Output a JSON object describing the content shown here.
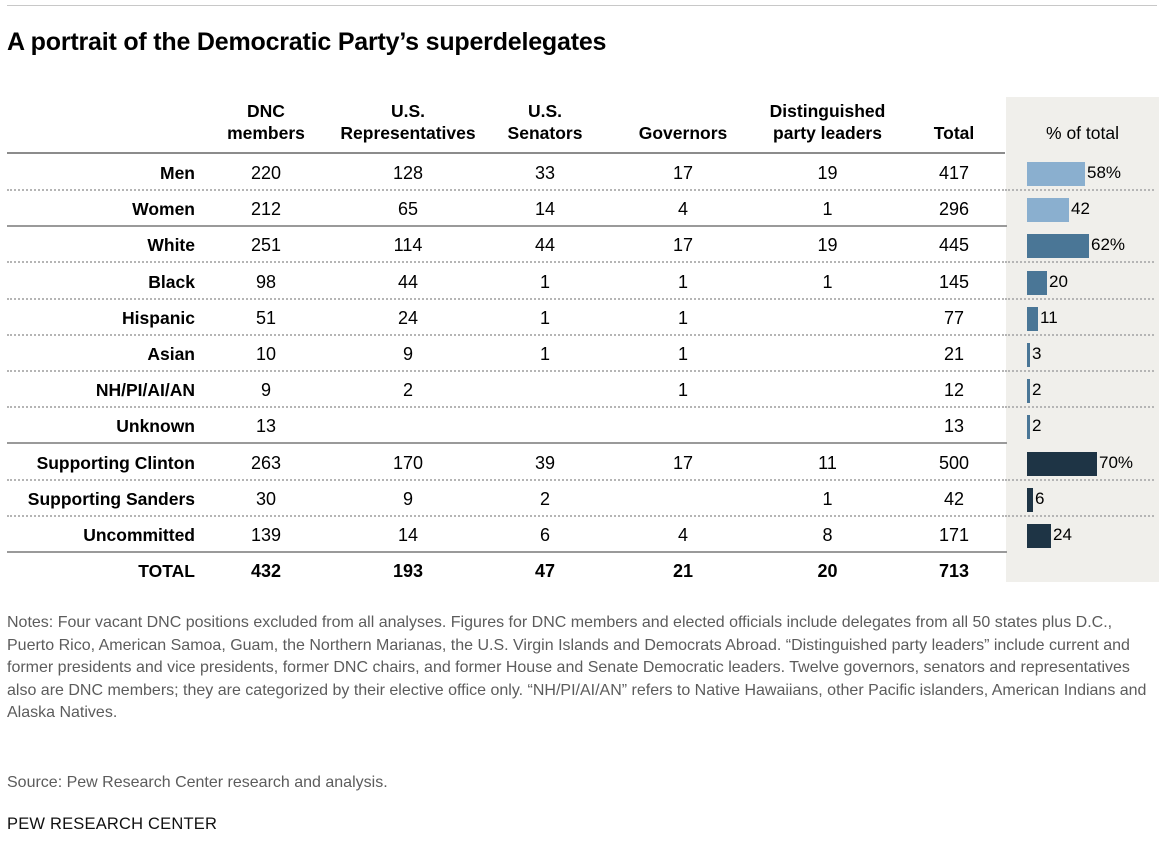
{
  "title": "A portrait of the Democratic Party’s superdelegates",
  "columns": [
    "DNC\nmembers",
    "U.S.\nRepresentatives",
    "U.S.\nSenators",
    "Governors",
    "Distinguished\nparty leaders",
    "Total",
    "% of total"
  ],
  "chart_data": {
    "type": "table",
    "title": "A portrait of the Democratic Party’s superdelegates",
    "rows": [
      {
        "label": "Men",
        "dnc": "220",
        "reps": "128",
        "senators": "33",
        "governors": "17",
        "leaders": "19",
        "total": "417",
        "pct": 58,
        "pct_label": "58%",
        "bar_color": "#8aafcf"
      },
      {
        "label": "Women",
        "dnc": "212",
        "reps": "65",
        "senators": "14",
        "governors": "4",
        "leaders": "1",
        "total": "296",
        "pct": 42,
        "pct_label": "42",
        "bar_color": "#8aafcf"
      },
      {
        "label": "White",
        "dnc": "251",
        "reps": "114",
        "senators": "44",
        "governors": "17",
        "leaders": "19",
        "total": "445",
        "pct": 62,
        "pct_label": "62%",
        "bar_color": "#4a7696"
      },
      {
        "label": "Black",
        "dnc": "98",
        "reps": "44",
        "senators": "1",
        "governors": "1",
        "leaders": "1",
        "total": "145",
        "pct": 20,
        "pct_label": "20",
        "bar_color": "#4a7696"
      },
      {
        "label": "Hispanic",
        "dnc": "51",
        "reps": "24",
        "senators": "1",
        "governors": "1",
        "leaders": "",
        "total": "77",
        "pct": 11,
        "pct_label": "11",
        "bar_color": "#4a7696"
      },
      {
        "label": "Asian",
        "dnc": "10",
        "reps": "9",
        "senators": "1",
        "governors": "1",
        "leaders": "",
        "total": "21",
        "pct": 3,
        "pct_label": "3",
        "bar_color": "#4a7696"
      },
      {
        "label": "NH/PI/AI/AN",
        "dnc": "9",
        "reps": "2",
        "senators": "",
        "governors": "1",
        "leaders": "",
        "total": "12",
        "pct": 2,
        "pct_label": "2",
        "bar_color": "#4a7696"
      },
      {
        "label": "Unknown",
        "dnc": "13",
        "reps": "",
        "senators": "",
        "governors": "",
        "leaders": "",
        "total": "13",
        "pct": 2,
        "pct_label": "2",
        "bar_color": "#4a7696"
      },
      {
        "label": "Supporting Clinton",
        "dnc": "263",
        "reps": "170",
        "senators": "39",
        "governors": "17",
        "leaders": "11",
        "total": "500",
        "pct": 70,
        "pct_label": "70%",
        "bar_color": "#1e3445"
      },
      {
        "label": "Supporting Sanders",
        "dnc": "30",
        "reps": "9",
        "senators": "2",
        "governors": "",
        "leaders": "1",
        "total": "42",
        "pct": 6,
        "pct_label": "6",
        "bar_color": "#1e3445"
      },
      {
        "label": "Uncommitted",
        "dnc": "139",
        "reps": "14",
        "senators": "6",
        "governors": "4",
        "leaders": "8",
        "total": "171",
        "pct": 24,
        "pct_label": "24",
        "bar_color": "#1e3445"
      },
      {
        "label": "TOTAL",
        "dnc": "432",
        "reps": "193",
        "senators": "47",
        "governors": "21",
        "leaders": "20",
        "total": "713",
        "pct": null,
        "pct_label": "",
        "bar_color": ""
      }
    ]
  },
  "notes": "Notes: Four vacant DNC positions excluded from all analyses. Figures for DNC members and elected officials include delegates from all 50 states plus D.C., Puerto Rico, American Samoa, Guam, the Northern Marianas, the U.S. Virgin Islands and Democrats Abroad. “Distinguished party leaders” include current and former presidents and vice presidents, former DNC chairs, and former House and Senate Democratic leaders. Twelve governors, senators and representatives also are DNC members; they are categorized by their elective office only. “NH/PI/AI/AN” refers to Native Hawaiians, other Pacific islanders, American Indians and Alaska Natives.",
  "source": "Source: Pew Research Center research and analysis.",
  "brand": "PEW RESEARCH CENTER"
}
